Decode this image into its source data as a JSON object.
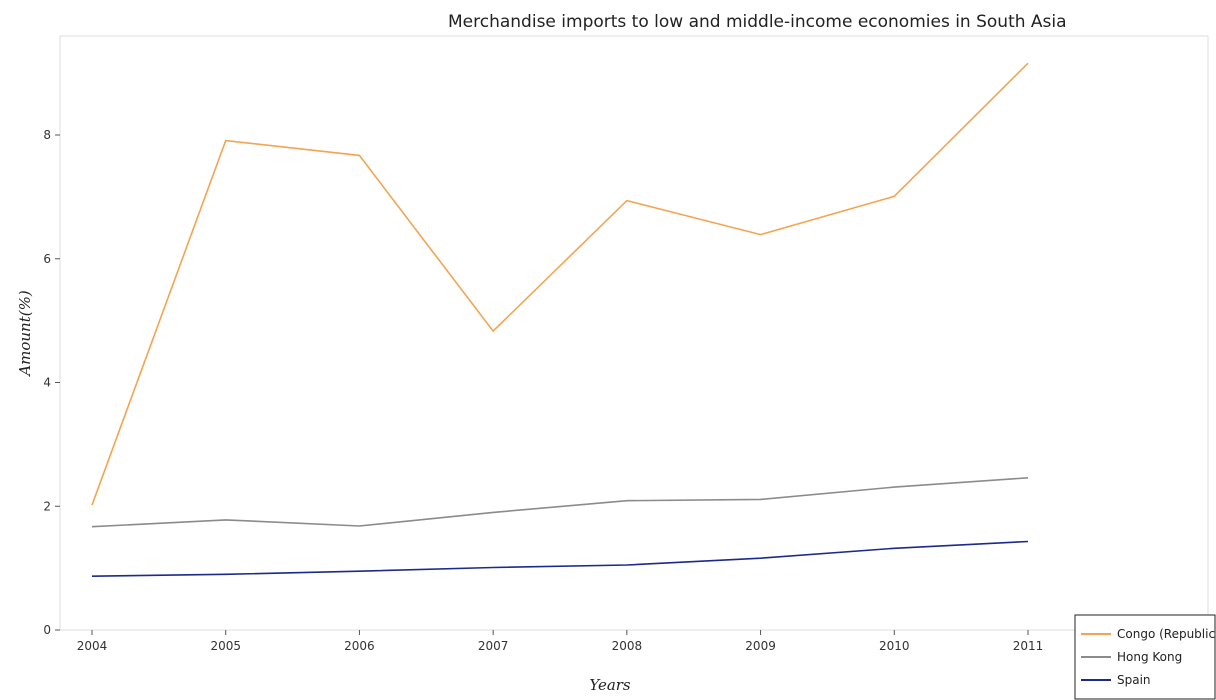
{
  "chart_data": {
    "type": "line",
    "title": "Merchandise imports to low and middle-income economies in South Asia",
    "xlabel": "Years",
    "ylabel": "Amount(%)",
    "x": [
      "2004",
      "2005",
      "2006",
      "2007",
      "2008",
      "2009",
      "2010",
      "2011"
    ],
    "ylim": [
      0,
      9.6
    ],
    "yticks": [
      "0",
      "2",
      "4",
      "6",
      "8"
    ],
    "grid": false,
    "legend_position": "bottom-right",
    "series": [
      {
        "name": "Congo (Republic)",
        "color": "#F4A451",
        "values": [
          2.02,
          7.91,
          7.67,
          4.83,
          6.94,
          6.39,
          7.01,
          9.16
        ]
      },
      {
        "name": "Hong Kong",
        "color": "#8B8B8B",
        "values": [
          1.67,
          1.78,
          1.68,
          1.9,
          2.09,
          2.11,
          2.31,
          2.46
        ]
      },
      {
        "name": "Spain",
        "color": "#1B2A8C",
        "values": [
          0.87,
          0.9,
          0.95,
          1.01,
          1.05,
          1.16,
          1.32,
          1.43
        ]
      }
    ]
  }
}
